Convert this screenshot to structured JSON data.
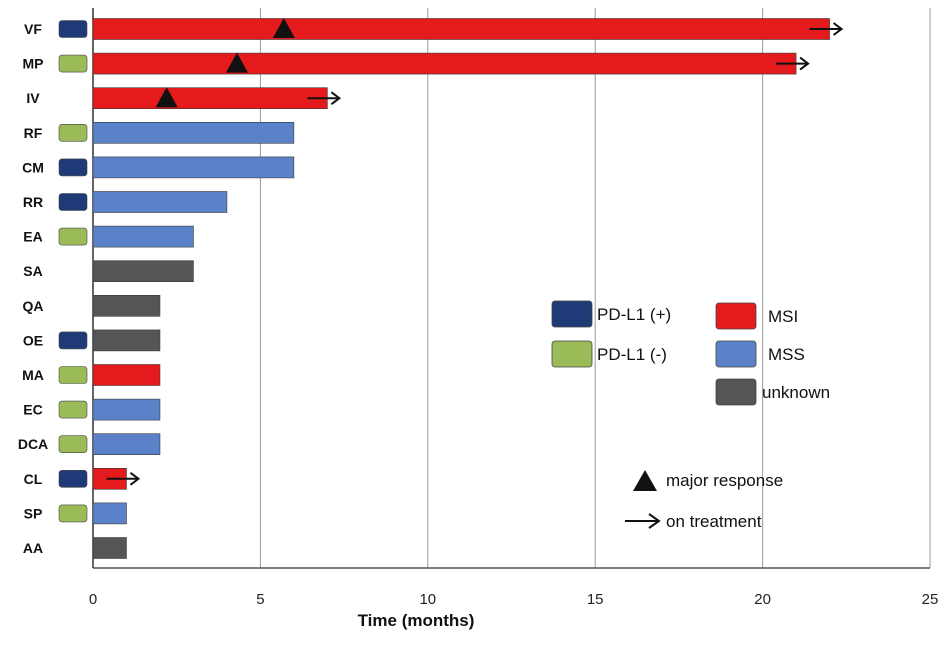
{
  "chart_data": {
    "type": "bar",
    "orientation": "horizontal",
    "categories": [
      "VF",
      "MP",
      "IV",
      "RF",
      "CM",
      "RR",
      "EA",
      "SA",
      "QA",
      "OE",
      "MA",
      "EC",
      "DCA",
      "CL",
      "SP",
      "AA"
    ],
    "values": [
      22,
      21,
      7,
      6,
      6,
      4,
      3,
      3,
      2,
      2,
      2,
      2,
      2,
      1,
      1,
      1
    ],
    "msi_status": [
      "MSI",
      "MSI",
      "MSI",
      "MSS",
      "MSS",
      "MSS",
      "MSS",
      "unknown",
      "unknown",
      "unknown",
      "MSI",
      "MSS",
      "MSS",
      "MSI",
      "MSS",
      "unknown"
    ],
    "pdl1_status": [
      "PD-L1 (+)",
      "PD-L1 (-)",
      null,
      "PD-L1 (-)",
      "PD-L1 (+)",
      "PD-L1 (+)",
      "PD-L1 (-)",
      null,
      null,
      "PD-L1 (+)",
      "PD-L1 (-)",
      "PD-L1 (-)",
      "PD-L1 (-)",
      "PD-L1 (+)",
      "PD-L1 (-)",
      null
    ],
    "major_response": [
      5.7,
      4.3,
      2.2,
      null,
      null,
      null,
      null,
      null,
      null,
      null,
      null,
      null,
      null,
      null,
      null,
      null
    ],
    "on_treatment": [
      true,
      true,
      true,
      false,
      false,
      false,
      false,
      false,
      false,
      false,
      false,
      false,
      false,
      true,
      false,
      false
    ],
    "xlabel": "Time (months)",
    "xlim": [
      0,
      25
    ],
    "xticks": [
      0,
      5,
      10,
      15,
      20,
      25
    ],
    "grid": "vertical",
    "legend_placement": "right",
    "legend": {
      "pdl1": [
        "PD-L1 (+)",
        "PD-L1 (-)"
      ],
      "status": [
        "MSI",
        "MSS",
        "unknown"
      ],
      "markers": [
        "major response",
        "on treatment"
      ]
    },
    "colors": {
      "MSI": "#e41a1c",
      "MSS": "#5b82c8",
      "unknown": "#555555",
      "PD-L1 (+)": "#1f3b77",
      "PD-L1 (-)": "#9bbb59"
    }
  }
}
